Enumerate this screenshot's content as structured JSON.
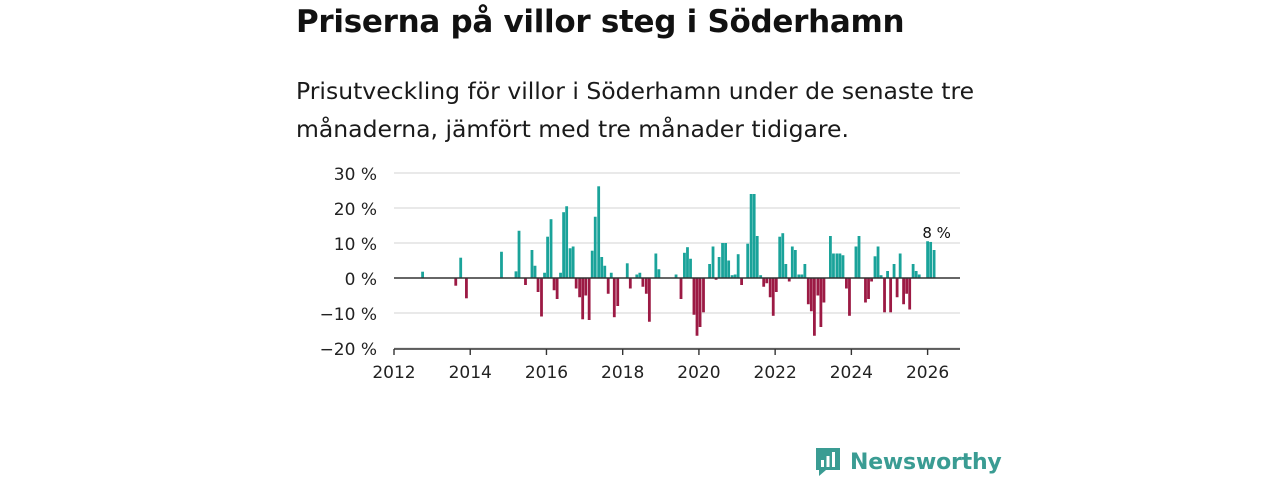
{
  "header": {
    "title": "Priserna på villor steg i Söderhamn",
    "subtitle": "Prisutveckling för villor i Söderhamn under de senaste tre månaderna, jämfört med tre månader tidigare."
  },
  "brand": {
    "name": "Newsworthy"
  },
  "colors": {
    "positive": "#1aa39a",
    "negative": "#9c1a44",
    "grid": "#dcdcdc",
    "zero": "#333333",
    "brand": "#3a9c93"
  },
  "chart_data": {
    "type": "bar",
    "title": "Priserna på villor steg i Söderhamn",
    "xlabel": "",
    "ylabel": "",
    "ylim": [
      -20,
      30
    ],
    "xlim": [
      2012,
      2026.85
    ],
    "yticks": [
      30,
      20,
      10,
      0,
      -10,
      -20
    ],
    "ytick_labels": [
      "30 %",
      "20 %",
      "10 %",
      "0 %",
      "−10 %",
      "−20 %"
    ],
    "xticks": [
      2012,
      2014,
      2016,
      2018,
      2020,
      2022,
      2024,
      2026
    ],
    "xtick_labels": [
      "2012",
      "2014",
      "2016",
      "2018",
      "2020",
      "2022",
      "2024",
      "2026"
    ],
    "annotation": {
      "label": "8 %",
      "x": 2026.08
    },
    "series": [
      {
        "name": "Prisutveckling",
        "unit": "%",
        "points": [
          [
            2012.75,
            1.8
          ],
          [
            2013.62,
            -2.2
          ],
          [
            2013.75,
            5.8
          ],
          [
            2013.9,
            -5.8
          ],
          [
            2014.82,
            7.5
          ],
          [
            2015.2,
            1.9
          ],
          [
            2015.28,
            13.5
          ],
          [
            2015.45,
            -2.0
          ],
          [
            2015.62,
            8.0
          ],
          [
            2015.7,
            3.5
          ],
          [
            2015.78,
            -4.0
          ],
          [
            2015.87,
            -11.0
          ],
          [
            2015.95,
            1.5
          ],
          [
            2016.03,
            11.8
          ],
          [
            2016.12,
            16.8
          ],
          [
            2016.2,
            -3.5
          ],
          [
            2016.28,
            -6.0
          ],
          [
            2016.37,
            1.5
          ],
          [
            2016.45,
            18.8
          ],
          [
            2016.53,
            20.5
          ],
          [
            2016.62,
            8.5
          ],
          [
            2016.7,
            9.0
          ],
          [
            2016.78,
            -3.0
          ],
          [
            2016.87,
            -5.5
          ],
          [
            2016.95,
            -11.8
          ],
          [
            2017.03,
            -5.0
          ],
          [
            2017.12,
            -12.0
          ],
          [
            2017.2,
            7.8
          ],
          [
            2017.28,
            17.5
          ],
          [
            2017.37,
            26.2
          ],
          [
            2017.45,
            6.0
          ],
          [
            2017.53,
            3.5
          ],
          [
            2017.62,
            -4.5
          ],
          [
            2017.7,
            1.5
          ],
          [
            2017.78,
            -11.2
          ],
          [
            2017.87,
            -8.0
          ],
          [
            2018.12,
            4.2
          ],
          [
            2018.2,
            -3.0
          ],
          [
            2018.37,
            1.0
          ],
          [
            2018.45,
            1.5
          ],
          [
            2018.53,
            -2.5
          ],
          [
            2018.62,
            -4.5
          ],
          [
            2018.7,
            -12.5
          ],
          [
            2018.87,
            7.0
          ],
          [
            2018.95,
            2.5
          ],
          [
            2019.4,
            1.0
          ],
          [
            2019.53,
            -6.0
          ],
          [
            2019.62,
            7.2
          ],
          [
            2019.7,
            8.8
          ],
          [
            2019.78,
            5.5
          ],
          [
            2019.87,
            -10.5
          ],
          [
            2019.95,
            -16.5
          ],
          [
            2020.03,
            -14.0
          ],
          [
            2020.12,
            -9.8
          ],
          [
            2020.28,
            4.0
          ],
          [
            2020.37,
            9.0
          ],
          [
            2020.45,
            -0.5
          ],
          [
            2020.53,
            6.0
          ],
          [
            2020.62,
            10.0
          ],
          [
            2020.7,
            10.0
          ],
          [
            2020.78,
            5.0
          ],
          [
            2020.87,
            0.8
          ],
          [
            2020.95,
            1.0
          ],
          [
            2021.03,
            6.8
          ],
          [
            2021.12,
            -2.0
          ],
          [
            2021.28,
            9.8
          ],
          [
            2021.37,
            24.0
          ],
          [
            2021.45,
            24.0
          ],
          [
            2021.53,
            12.0
          ],
          [
            2021.62,
            0.8
          ],
          [
            2021.7,
            -2.5
          ],
          [
            2021.78,
            -1.5
          ],
          [
            2021.87,
            -5.5
          ],
          [
            2021.95,
            -10.8
          ],
          [
            2022.03,
            -4.0
          ],
          [
            2022.12,
            11.8
          ],
          [
            2022.2,
            12.8
          ],
          [
            2022.28,
            4.0
          ],
          [
            2022.37,
            -1.0
          ],
          [
            2022.45,
            9.0
          ],
          [
            2022.53,
            8.0
          ],
          [
            2022.62,
            1.0
          ],
          [
            2022.7,
            1.0
          ],
          [
            2022.78,
            4.0
          ],
          [
            2022.87,
            -7.5
          ],
          [
            2022.95,
            -9.5
          ],
          [
            2023.03,
            -16.5
          ],
          [
            2023.12,
            -5.0
          ],
          [
            2023.2,
            -14.0
          ],
          [
            2023.28,
            -7.0
          ],
          [
            2023.45,
            12.0
          ],
          [
            2023.53,
            7.0
          ],
          [
            2023.62,
            7.0
          ],
          [
            2023.7,
            7.0
          ],
          [
            2023.78,
            6.5
          ],
          [
            2023.87,
            -3.0
          ],
          [
            2023.95,
            -10.8
          ],
          [
            2024.12,
            9.0
          ],
          [
            2024.2,
            12.0
          ],
          [
            2024.37,
            -7.0
          ],
          [
            2024.45,
            -6.0
          ],
          [
            2024.53,
            -1.0
          ],
          [
            2024.62,
            6.2
          ],
          [
            2024.7,
            9.0
          ],
          [
            2024.78,
            0.8
          ],
          [
            2024.87,
            -9.8
          ],
          [
            2024.95,
            2.0
          ],
          [
            2025.03,
            -9.8
          ],
          [
            2025.12,
            4.0
          ],
          [
            2025.2,
            -5.5
          ],
          [
            2025.28,
            7.0
          ],
          [
            2025.37,
            -7.5
          ],
          [
            2025.45,
            -4.5
          ],
          [
            2025.53,
            -9.0
          ],
          [
            2025.62,
            4.0
          ],
          [
            2025.7,
            2.0
          ],
          [
            2025.78,
            1.0
          ],
          [
            2026.0,
            10.5
          ],
          [
            2026.08,
            10.3
          ],
          [
            2026.17,
            8.0
          ]
        ]
      }
    ]
  }
}
